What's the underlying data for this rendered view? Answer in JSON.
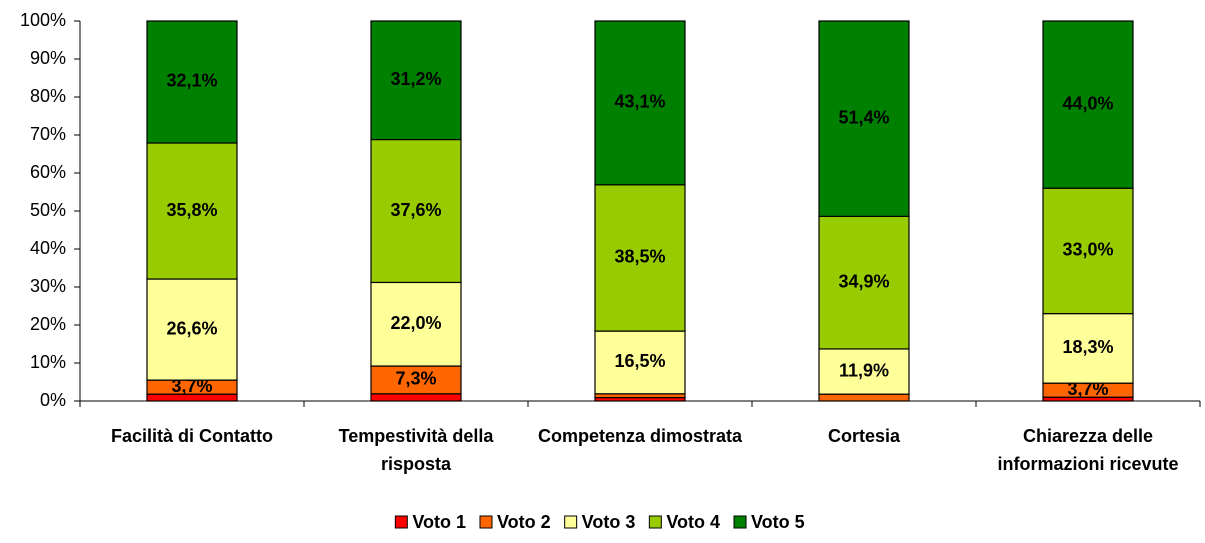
{
  "chart_data": {
    "type": "stacked_bar",
    "categories": [
      "Facilità di Contatto",
      "Tempestività della risposta",
      "Competenza dimostrata",
      "Cortesia",
      "Chiarezza delle informazioni ricevute"
    ],
    "series": [
      {
        "name": "Voto 1",
        "color": "#ff0000",
        "values": [
          1.8,
          1.9,
          0.9,
          0,
          1.0
        ],
        "value_labels": [
          null,
          null,
          null,
          null,
          null
        ]
      },
      {
        "name": "Voto 2",
        "color": "#ff6600",
        "values": [
          3.7,
          7.3,
          1.0,
          1.8,
          3.7
        ],
        "value_labels": [
          "3,7%",
          "7,3%",
          null,
          null,
          "3,7%"
        ]
      },
      {
        "name": "Voto 3",
        "color": "#ffff99",
        "values": [
          26.6,
          22.0,
          16.5,
          11.9,
          18.3
        ],
        "value_labels": [
          "26,6%",
          "22,0%",
          "16,5%",
          "11,9%",
          "18,3%"
        ]
      },
      {
        "name": "Voto 4",
        "color": "#99cc00",
        "values": [
          35.8,
          37.6,
          38.5,
          34.9,
          33.0
        ],
        "value_labels": [
          "35,8%",
          "37,6%",
          "38,5%",
          "34,9%",
          "33,0%"
        ]
      },
      {
        "name": "Voto 5",
        "color": "#008000",
        "values": [
          32.1,
          31.2,
          43.1,
          51.4,
          44.0
        ],
        "value_labels": [
          "32,1%",
          "31,2%",
          "43,1%",
          "51,4%",
          "44,0%"
        ]
      }
    ],
    "ylim": [
      0,
      100
    ],
    "yticks": [
      {
        "value": 0,
        "label": "0%"
      },
      {
        "value": 10,
        "label": "10%"
      },
      {
        "value": 20,
        "label": "20%"
      },
      {
        "value": 30,
        "label": "30%"
      },
      {
        "value": 40,
        "label": "40%"
      },
      {
        "value": 50,
        "label": "50%"
      },
      {
        "value": 60,
        "label": "60%"
      },
      {
        "value": 70,
        "label": "70%"
      },
      {
        "value": 80,
        "label": "80%"
      },
      {
        "value": 90,
        "label": "90%"
      },
      {
        "value": 100,
        "label": "100%"
      }
    ],
    "legend": "bottom"
  }
}
